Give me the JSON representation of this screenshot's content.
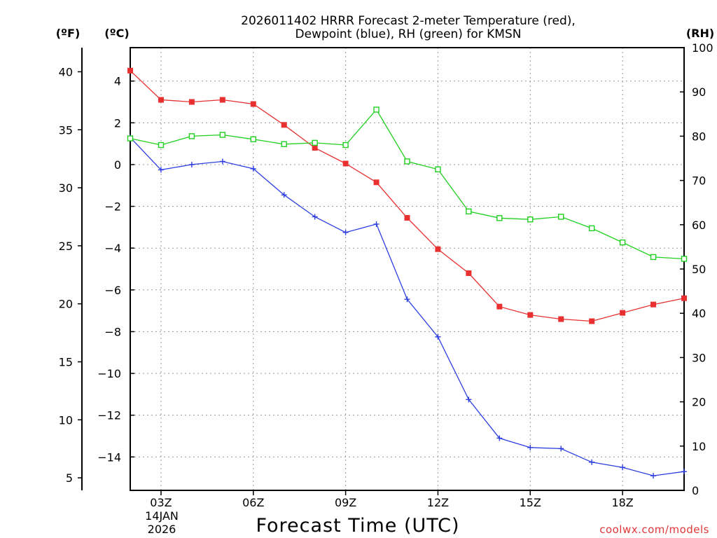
{
  "chart_data": {
    "type": "line",
    "title_line1": "2026011402 HRRR Forecast 2-meter Temperature (red),",
    "title_line2": "Dewpoint (blue), RH (green) for KMSN",
    "xlabel": "Forecast Time (UTC)",
    "ylabel_left_f": "(ºF)",
    "ylabel_left_c": "(ºC)",
    "ylabel_right": "(RH)",
    "date_label": [
      "14JAN",
      "2026"
    ],
    "watermark": "coolwx.com/models",
    "x_hours": [
      2,
      3,
      4,
      5,
      6,
      7,
      8,
      9,
      10,
      11,
      12,
      13,
      14,
      15,
      16,
      17,
      18,
      19,
      20
    ],
    "x_range": [
      2,
      20
    ],
    "x_ticks": [
      {
        "hour": 3,
        "label": "03Z"
      },
      {
        "hour": 6,
        "label": "06Z"
      },
      {
        "hour": 9,
        "label": "09Z"
      },
      {
        "hour": 12,
        "label": "12Z"
      },
      {
        "hour": 15,
        "label": "15Z"
      },
      {
        "hour": 18,
        "label": "18Z"
      }
    ],
    "c_range": [
      -15.6,
      5.6
    ],
    "c_ticks": [
      4,
      2,
      0,
      -2,
      -4,
      -6,
      -8,
      -10,
      -12,
      -14
    ],
    "f_ticks": [
      40,
      35,
      30,
      25,
      20,
      15,
      10,
      5
    ],
    "rh_range": [
      0,
      100
    ],
    "rh_ticks": [
      100,
      90,
      80,
      70,
      60,
      50,
      40,
      30,
      20,
      10,
      0
    ],
    "series": [
      {
        "name": "Temperature",
        "unit": "C",
        "color": "#e83030",
        "marker": "filled-square",
        "values": [
          4.5,
          3.1,
          3.0,
          3.1,
          2.9,
          1.9,
          0.8,
          0.05,
          -0.85,
          -2.55,
          -4.05,
          -5.2,
          -6.8,
          -7.2,
          -7.4,
          -7.5,
          -7.1,
          -6.7,
          -6.4
        ]
      },
      {
        "name": "Dewpoint",
        "unit": "C",
        "color": "#2c3ee0",
        "marker": "plus",
        "values": [
          1.3,
          -0.25,
          0.0,
          0.15,
          -0.2,
          -1.45,
          -2.5,
          -3.25,
          -2.85,
          -6.45,
          -8.25,
          -11.25,
          -13.1,
          -13.55,
          -13.6,
          -14.25,
          -14.5,
          -14.9,
          -14.7
        ]
      },
      {
        "name": "RH",
        "unit": "%",
        "color": "#20d020",
        "marker": "open-square",
        "values": [
          79.5,
          78,
          80,
          80.3,
          79.3,
          78.2,
          78.5,
          78,
          86,
          74.3,
          72.5,
          63,
          61.5,
          61.2,
          61.8,
          59.2,
          56,
          52.7,
          52.3
        ]
      }
    ]
  }
}
